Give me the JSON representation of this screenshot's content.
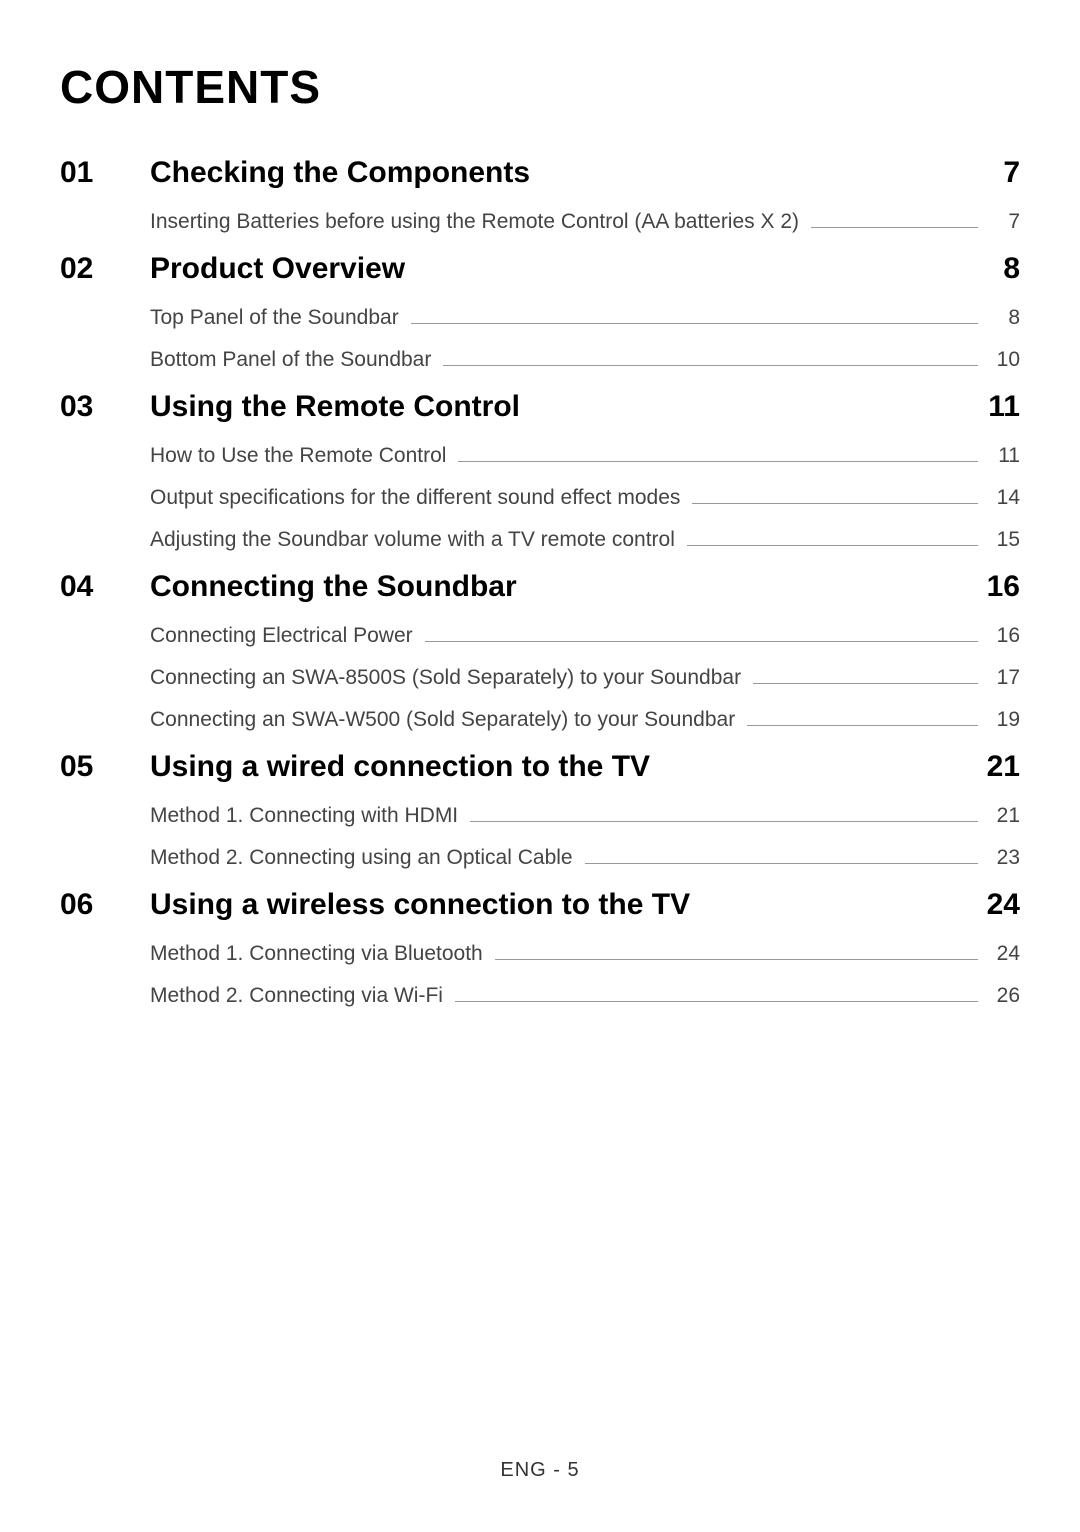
{
  "title": "CONTENTS",
  "footer": "ENG - 5",
  "sections": [
    {
      "number": "01",
      "title": "Checking the Components",
      "page": "7",
      "items": [
        {
          "title": "Inserting Batteries before using the Remote Control (AA batteries X 2)",
          "page": "7"
        }
      ]
    },
    {
      "number": "02",
      "title": "Product Overview",
      "page": "8",
      "items": [
        {
          "title": "Top Panel of the Soundbar",
          "page": "8"
        },
        {
          "title": "Bottom Panel of the Soundbar",
          "page": "10"
        }
      ]
    },
    {
      "number": "03",
      "title": "Using the Remote Control",
      "page": "11",
      "items": [
        {
          "title": "How to Use the Remote Control",
          "page": "11"
        },
        {
          "title": "Output specifications for the different sound effect modes",
          "page": "14"
        },
        {
          "title": "Adjusting the Soundbar volume with a TV remote control",
          "page": "15"
        }
      ]
    },
    {
      "number": "04",
      "title": "Connecting the Soundbar",
      "page": "16",
      "items": [
        {
          "title": "Connecting Electrical Power",
          "page": "16"
        },
        {
          "title": "Connecting an SWA-8500S (Sold Separately) to your Soundbar",
          "page": "17"
        },
        {
          "title": "Connecting an SWA-W500 (Sold Separately) to your Soundbar",
          "page": "19"
        }
      ]
    },
    {
      "number": "05",
      "title": "Using a wired connection to the TV",
      "page": "21",
      "items": [
        {
          "title": "Method 1. Connecting with HDMI",
          "page": "21"
        },
        {
          "title": "Method 2. Connecting using an Optical Cable",
          "page": "23"
        }
      ]
    },
    {
      "number": "06",
      "title": "Using a wireless connection to the TV",
      "page": "24",
      "items": [
        {
          "title": "Method 1. Connecting via Bluetooth",
          "page": "24"
        },
        {
          "title": "Method 2. Connecting via Wi-Fi",
          "page": "26"
        }
      ]
    }
  ]
}
